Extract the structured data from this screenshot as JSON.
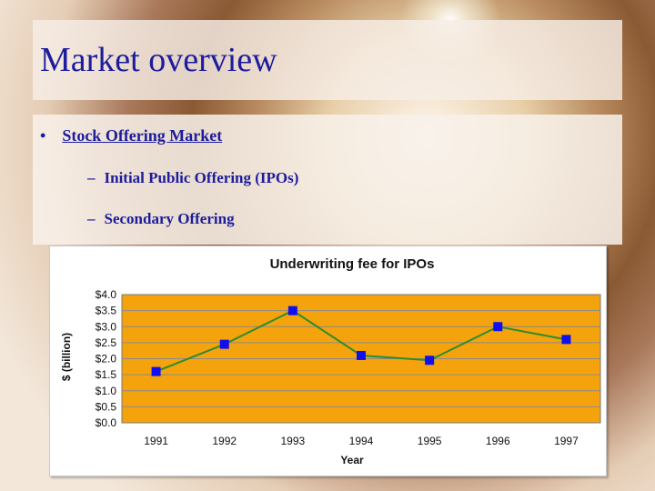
{
  "slide": {
    "title": "Market overview",
    "bullet": "Stock Offering Market",
    "sub_items": [
      "Initial Public Offering (IPOs)",
      "Secondary Offering"
    ],
    "bullet_char": "•",
    "dash_char": "–",
    "title_color": "#1c1c9c"
  },
  "chart_data": {
    "type": "line",
    "title": "Underwriting fee for IPOs",
    "xlabel": "Year",
    "ylabel": "$ (billion)",
    "categories": [
      "1991",
      "1992",
      "1993",
      "1994",
      "1995",
      "1996",
      "1997"
    ],
    "y_tick_labels": [
      "$4.0",
      "$3.5",
      "$3.0",
      "$2.5",
      "$2.0",
      "$1.5",
      "$1.0",
      "$0.5",
      "$0.0"
    ],
    "ylim": [
      0,
      4.0
    ],
    "series": [
      {
        "values": [
          1.6,
          2.45,
          3.5,
          2.1,
          1.95,
          3.0,
          2.6
        ],
        "line_color": "#2e8b2e",
        "marker_color": "#1010ee"
      }
    ],
    "plot_background": "#f5a30c",
    "grid": true,
    "legend": "none"
  }
}
